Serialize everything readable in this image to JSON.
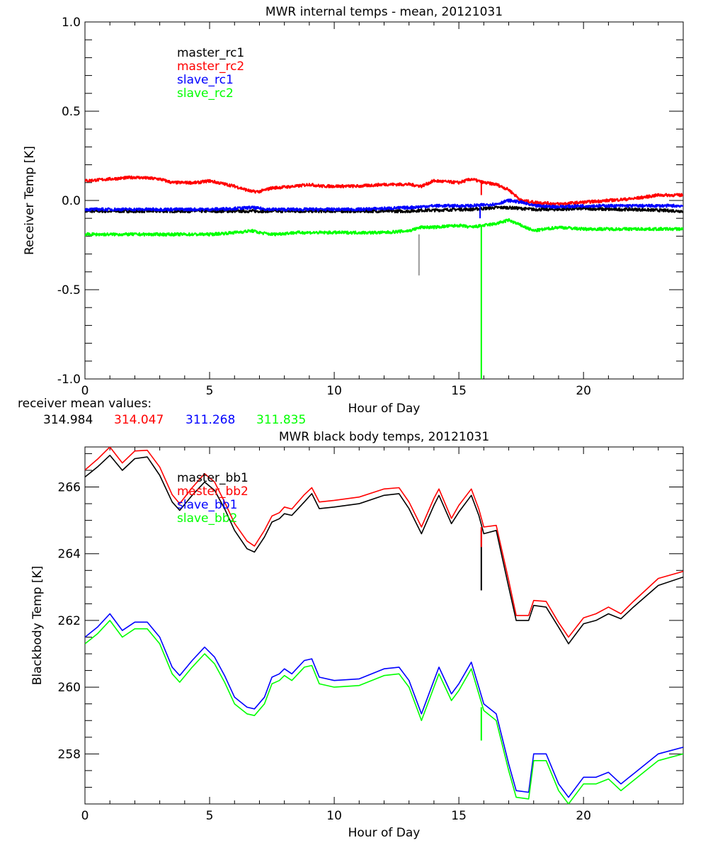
{
  "colors": {
    "master_1": "#000000",
    "master_2": "#ff0000",
    "slave_1": "#0000ff",
    "slave_2": "#00ff00",
    "spike_gray": "#999999"
  },
  "receiver_means": {
    "label": "receiver mean values:",
    "values": [
      "314.984",
      "314.047",
      "311.268",
      "311.835"
    ]
  },
  "chart_data": [
    {
      "type": "line",
      "title": "MWR internal temps - mean, 20121031",
      "xlabel": "Hour of Day",
      "ylabel": "Receiver Temp [K]",
      "xlim": [
        0,
        24
      ],
      "ylim": [
        -1.0,
        1.0
      ],
      "xticks": [
        "0",
        "5",
        "10",
        "15",
        "20"
      ],
      "yticks": [
        "-1.0",
        "-0.5",
        "0.0",
        "0.5",
        "1.0"
      ],
      "legend": {
        "placement": "top-left",
        "entries": [
          "master_rc1",
          "master_rc2",
          "slave_rc1",
          "slave_rc2"
        ]
      },
      "x": [
        0,
        1,
        2,
        3,
        3.5,
        4.5,
        5,
        6,
        6.7,
        7,
        7.5,
        8.5,
        9,
        9.5,
        11,
        12,
        13,
        13.5,
        14,
        15,
        15.5,
        16,
        16.5,
        17,
        17.5,
        18,
        19,
        20,
        21,
        22,
        23,
        24
      ],
      "series": [
        {
          "name": "master_rc1",
          "values": [
            -0.06,
            -0.06,
            -0.06,
            -0.06,
            -0.06,
            -0.06,
            -0.06,
            -0.06,
            -0.06,
            -0.06,
            -0.06,
            -0.06,
            -0.06,
            -0.06,
            -0.06,
            -0.06,
            -0.06,
            -0.055,
            -0.055,
            -0.05,
            -0.05,
            -0.045,
            -0.04,
            -0.04,
            -0.045,
            -0.05,
            -0.05,
            -0.045,
            -0.05,
            -0.05,
            -0.055,
            -0.06
          ]
        },
        {
          "name": "master_rc2",
          "values": [
            0.11,
            0.12,
            0.13,
            0.12,
            0.1,
            0.1,
            0.11,
            0.08,
            0.05,
            0.05,
            0.07,
            0.08,
            0.09,
            0.08,
            0.08,
            0.09,
            0.09,
            0.08,
            0.11,
            0.1,
            0.12,
            0.1,
            0.09,
            0.06,
            0.0,
            -0.01,
            -0.02,
            -0.01,
            0.0,
            0.01,
            0.03,
            0.03
          ]
        },
        {
          "name": "slave_rc1",
          "values": [
            -0.05,
            -0.05,
            -0.05,
            -0.05,
            -0.05,
            -0.05,
            -0.05,
            -0.045,
            -0.04,
            -0.045,
            -0.05,
            -0.05,
            -0.05,
            -0.05,
            -0.05,
            -0.045,
            -0.04,
            -0.035,
            -0.03,
            -0.03,
            -0.03,
            -0.025,
            -0.02,
            0.0,
            -0.01,
            -0.03,
            -0.035,
            -0.03,
            -0.03,
            -0.03,
            -0.03,
            -0.03
          ]
        },
        {
          "name": "slave_rc2",
          "values": [
            -0.19,
            -0.19,
            -0.19,
            -0.19,
            -0.19,
            -0.19,
            -0.19,
            -0.18,
            -0.17,
            -0.18,
            -0.19,
            -0.18,
            -0.18,
            -0.18,
            -0.18,
            -0.18,
            -0.17,
            -0.15,
            -0.15,
            -0.14,
            -0.15,
            -0.14,
            -0.13,
            -0.11,
            -0.14,
            -0.17,
            -0.15,
            -0.16,
            -0.16,
            -0.16,
            -0.16,
            -0.16
          ]
        }
      ],
      "spikes": [
        {
          "series": "gray",
          "x": 13.4,
          "from": -0.19,
          "to": -0.42
        },
        {
          "series": "slave_rc2",
          "x": 15.9,
          "from": -0.14,
          "to": -1.0
        },
        {
          "series": "slave_rc1",
          "x": 15.85,
          "from": -0.03,
          "to": -0.1
        },
        {
          "series": "master_rc2",
          "x": 15.9,
          "from": 0.1,
          "to": 0.03
        }
      ]
    },
    {
      "type": "line",
      "title": "MWR black body temps, 20121031",
      "xlabel": "Hour of Day",
      "ylabel": "Blackbody Temp [K]",
      "xlim": [
        0,
        24
      ],
      "ylim": [
        256.5,
        267.2
      ],
      "xticks": [
        "0",
        "5",
        "10",
        "15",
        "20"
      ],
      "yticks": [
        "258",
        "260",
        "262",
        "264",
        "266"
      ],
      "legend": {
        "placement": "top-left",
        "entries": [
          "master_bb1",
          "master_bb2",
          "slave_bb1",
          "slave_bb2"
        ]
      },
      "x": [
        0,
        0.5,
        1,
        1.5,
        2,
        2.5,
        3,
        3.5,
        3.8,
        4.3,
        4.8,
        5.2,
        5.6,
        6,
        6.5,
        6.8,
        7.2,
        7.5,
        7.8,
        8,
        8.3,
        8.8,
        9.1,
        9.4,
        10,
        11,
        12,
        12.6,
        13,
        13.5,
        14,
        14.2,
        14.7,
        15,
        15.5,
        15.8,
        16,
        16.5,
        17,
        17.3,
        17.8,
        18,
        18.5,
        19,
        19.4,
        20,
        20.5,
        21,
        21.5,
        22,
        23,
        24
      ],
      "series": [
        {
          "name": "master_bb1",
          "values": [
            266.3,
            266.6,
            266.95,
            266.5,
            266.85,
            266.9,
            266.35,
            265.55,
            265.3,
            265.75,
            266.15,
            265.9,
            265.35,
            264.7,
            264.15,
            264.05,
            264.5,
            264.95,
            265.05,
            265.2,
            265.15,
            265.55,
            265.8,
            265.35,
            265.4,
            265.5,
            265.75,
            265.8,
            265.35,
            264.6,
            265.45,
            265.75,
            264.9,
            265.25,
            265.75,
            265.15,
            264.6,
            264.7,
            263.0,
            262.0,
            262.0,
            262.45,
            262.4,
            261.8,
            261.3,
            261.9,
            262.0,
            262.2,
            262.05,
            262.4,
            263.05,
            263.3
          ]
        },
        {
          "name": "master_bb2",
          "values": [
            266.51,
            266.83,
            267.2,
            266.72,
            267.08,
            267.1,
            266.6,
            265.77,
            265.5,
            265.98,
            266.4,
            266.15,
            265.55,
            264.91,
            264.38,
            264.23,
            264.7,
            265.13,
            265.23,
            265.4,
            265.34,
            265.77,
            265.98,
            265.55,
            265.6,
            265.7,
            265.94,
            265.98,
            265.55,
            264.8,
            265.66,
            265.94,
            265.06,
            265.45,
            265.94,
            265.34,
            264.8,
            264.85,
            263.2,
            262.15,
            262.15,
            262.6,
            262.57,
            261.94,
            261.5,
            262.08,
            262.2,
            262.4,
            262.2,
            262.57,
            263.26,
            263.47
          ]
        },
        {
          "name": "slave_bb1",
          "values": [
            261.5,
            261.8,
            262.2,
            261.7,
            261.95,
            261.95,
            261.5,
            260.6,
            260.35,
            260.8,
            261.2,
            260.9,
            260.35,
            259.7,
            259.4,
            259.35,
            259.7,
            260.3,
            260.4,
            260.55,
            260.4,
            260.8,
            260.85,
            260.3,
            260.2,
            260.25,
            260.55,
            260.6,
            260.2,
            259.2,
            260.2,
            260.6,
            259.8,
            260.1,
            260.75,
            260.0,
            259.5,
            259.2,
            257.7,
            256.9,
            256.85,
            258.0,
            258.0,
            257.1,
            256.7,
            257.3,
            257.3,
            257.45,
            257.1,
            257.4,
            258.0,
            258.2
          ]
        },
        {
          "name": "slave_bb2",
          "values": [
            261.3,
            261.6,
            262.0,
            261.5,
            261.75,
            261.75,
            261.3,
            260.4,
            260.15,
            260.6,
            261.0,
            260.7,
            260.15,
            259.5,
            259.2,
            259.15,
            259.5,
            260.1,
            260.2,
            260.35,
            260.2,
            260.6,
            260.65,
            260.1,
            260.0,
            260.05,
            260.35,
            260.4,
            260.0,
            259.0,
            260.0,
            260.4,
            259.6,
            259.9,
            260.55,
            259.8,
            259.3,
            259.0,
            257.5,
            256.7,
            256.65,
            257.8,
            257.8,
            256.9,
            256.5,
            257.1,
            257.1,
            257.25,
            256.9,
            257.2,
            257.8,
            258.0
          ]
        }
      ],
      "spikes": [
        {
          "series": "master_bb1",
          "x": 15.9,
          "from": 264.7,
          "to": 262.9
        },
        {
          "series": "master_bb2",
          "x": 15.9,
          "from": 264.8,
          "to": 264.2
        },
        {
          "series": "slave_bb2",
          "x": 15.9,
          "from": 259.4,
          "to": 258.4
        }
      ]
    }
  ]
}
